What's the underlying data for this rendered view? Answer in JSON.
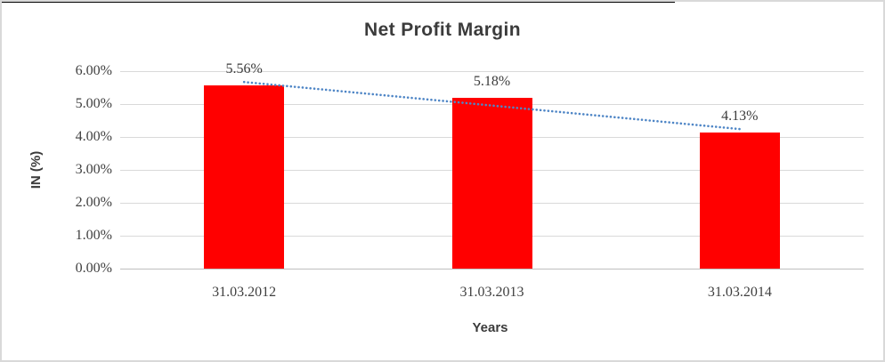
{
  "frame": {
    "border_color": "#d9d9d9",
    "accent_border_color": "#000000",
    "background": "#ffffff"
  },
  "chart_data": {
    "type": "bar",
    "title": "Net Profit Margin",
    "xlabel": "Years",
    "ylabel": "IN (%)",
    "categories": [
      "31.03.2012",
      "31.03.2013",
      "31.03.2014"
    ],
    "values": [
      5.56,
      5.18,
      4.13
    ],
    "data_labels": [
      "5.56%",
      "5.18%",
      "4.13%"
    ],
    "ylim": [
      0,
      6
    ],
    "ytick_step": 1,
    "ytick_labels": [
      "0.00%",
      "1.00%",
      "2.00%",
      "3.00%",
      "4.00%",
      "5.00%",
      "6.00%"
    ],
    "grid": true,
    "legend": "none",
    "bar_color": "#ff0000",
    "trendline": {
      "type": "linear",
      "style": "dotted",
      "color": "#4f86c6",
      "start_value": 5.67,
      "end_value": 4.24
    },
    "colors": {
      "gridline": "#d9d9d9",
      "axis_line": "#bfbfbf",
      "title_text": "#3b3b3b",
      "label_text": "#3f3f3f"
    }
  }
}
